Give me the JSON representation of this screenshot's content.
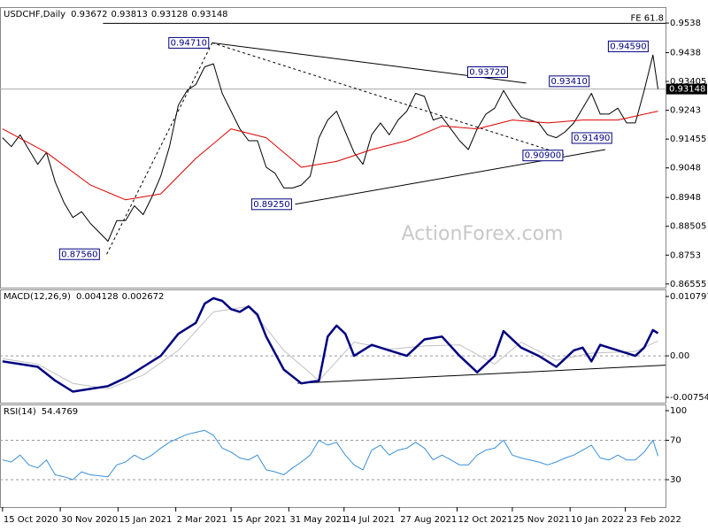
{
  "chart_data": [
    {
      "type": "line",
      "title": "USDCHF,Daily",
      "readout": [
        0.93672,
        0.93813,
        0.93128,
        0.93148
      ],
      "watermark": "ActionForex.com",
      "xlim": [
        -2,
        528
      ],
      "ylim": [
        0.8643,
        0.9592
      ],
      "yticks": [
        0.9538,
        0.9438,
        0.93405,
        0.9243,
        0.91455,
        0.9048,
        0.8948,
        0.88505,
        0.8753,
        0.86555
      ],
      "series": [
        {
          "color": "#000000",
          "width": 1,
          "x": [
            0,
            7,
            14,
            21,
            28,
            35,
            42,
            49,
            56,
            63,
            70,
            77,
            84,
            91,
            98,
            105,
            112,
            119,
            126,
            133,
            140,
            147,
            154,
            161,
            168,
            175,
            182,
            189,
            196,
            203,
            210,
            217,
            224,
            231,
            238,
            245,
            252,
            259,
            266,
            273,
            280,
            287,
            294,
            301,
            308,
            315,
            322,
            329,
            336,
            343,
            350,
            357,
            364,
            371,
            378,
            385,
            392,
            399,
            406,
            413,
            420,
            427,
            434,
            441,
            448,
            455,
            462,
            469,
            476,
            483,
            490,
            497,
            504,
            511,
            518,
            522
          ],
          "values": [
            0.915,
            0.912,
            0.916,
            0.911,
            0.906,
            0.91,
            0.9,
            0.893,
            0.888,
            0.89,
            0.886,
            0.883,
            0.88,
            0.887,
            0.887,
            0.892,
            0.889,
            0.895,
            0.902,
            0.912,
            0.926,
            0.931,
            0.933,
            0.939,
            0.94,
            0.93,
            0.924,
            0.918,
            0.914,
            0.914,
            0.905,
            0.903,
            0.898,
            0.898,
            0.899,
            0.902,
            0.915,
            0.921,
            0.924,
            0.917,
            0.91,
            0.906,
            0.916,
            0.92,
            0.916,
            0.921,
            0.924,
            0.93,
            0.929,
            0.921,
            0.922,
            0.918,
            0.914,
            0.911,
            0.918,
            0.923,
            0.925,
            0.931,
            0.926,
            0.922,
            0.921,
            0.92,
            0.916,
            0.915,
            0.917,
            0.92,
            0.925,
            0.93,
            0.923,
            0.923,
            0.925,
            0.92,
            0.92,
            0.931,
            0.943,
            0.93148
          ]
        },
        {
          "color": "#dd0000",
          "width": 1,
          "x": [
            0,
            35,
            70,
            98,
            126,
            154,
            182,
            210,
            238,
            266,
            294,
            322,
            350,
            378,
            406,
            434,
            462,
            490,
            522
          ],
          "values": [
            0.918,
            0.91,
            0.899,
            0.894,
            0.896,
            0.908,
            0.918,
            0.915,
            0.905,
            0.907,
            0.911,
            0.914,
            0.919,
            0.918,
            0.921,
            0.92,
            0.921,
            0.921,
            0.924
          ]
        }
      ],
      "lines": [
        {
          "style": "solid",
          "x": [
            167,
            417
          ],
          "y": [
            0.9471,
            0.9335
          ]
        },
        {
          "style": "solid",
          "x": [
            233,
            480
          ],
          "y": [
            0.8925,
            0.911
          ]
        },
        {
          "style": "dashed",
          "x": [
            83,
            167
          ],
          "y": [
            0.8756,
            0.9471
          ]
        },
        {
          "style": "dashed",
          "x": [
            167,
            449
          ],
          "y": [
            0.9471,
            0.909
          ]
        }
      ],
      "hline": {
        "y": 0.9537,
        "x0": 80,
        "label": "FE 61.8"
      },
      "last_price": 0.93148,
      "annotations": [
        {
          "text": "0.94710",
          "x": 167,
          "y": 0.9471
        },
        {
          "text": "0.87560",
          "x": 80,
          "y": 0.8756
        },
        {
          "text": "0.89250",
          "x": 233,
          "y": 0.8925
        },
        {
          "text": "0.93720",
          "x": 405,
          "y": 0.9372
        },
        {
          "text": "0.93410",
          "x": 470,
          "y": 0.9341
        },
        {
          "text": "0.90900",
          "x": 449,
          "y": 0.909
        },
        {
          "text": "0.91490",
          "x": 488,
          "y": 0.9149
        },
        {
          "text": "0.94590",
          "x": 517,
          "y": 0.9459
        }
      ]
    },
    {
      "type": "line",
      "title": "MACD(12,26,9)",
      "readout": [
        0.004128,
        0.002672
      ],
      "xlim": [
        -2,
        528
      ],
      "ylim": [
        -0.008515,
        0.012086
      ],
      "yticks": [
        0.010797,
        {
          "value": 0,
          "label": "0.00"
        },
        -0.007548
      ],
      "levels": [
        0
      ],
      "series": [
        {
          "color": "#c0c0c0",
          "width": 1,
          "x": [
            0,
            28,
            56,
            84,
            112,
            140,
            168,
            196,
            224,
            252,
            280,
            308,
            336,
            364,
            392,
            413,
            441,
            469,
            504,
            522
          ],
          "values": [
            -0.0005,
            -0.0015,
            -0.005,
            -0.006,
            -0.0035,
            0.001,
            0.008,
            0.009,
            0.001,
            -0.0045,
            0.0025,
            0.0012,
            0.0018,
            0.002,
            -0.0015,
            0.0025,
            -0.0008,
            0.0005,
            0.0008,
            0.0027
          ]
        },
        {
          "color": "#000080",
          "width": 2.5,
          "x": [
            0,
            14,
            28,
            42,
            56,
            70,
            84,
            98,
            112,
            126,
            140,
            154,
            161,
            168,
            175,
            182,
            189,
            196,
            203,
            210,
            224,
            238,
            252,
            259,
            266,
            273,
            280,
            294,
            308,
            322,
            336,
            350,
            364,
            378,
            392,
            399,
            413,
            427,
            441,
            455,
            462,
            469,
            476,
            490,
            504,
            511,
            518,
            522
          ],
          "values": [
            -0.001,
            -0.0015,
            -0.002,
            -0.0045,
            -0.0065,
            -0.006,
            -0.0055,
            -0.004,
            -0.002,
            0,
            0.004,
            0.006,
            0.0095,
            0.0105,
            0.01,
            0.0085,
            0.008,
            0.009,
            0.0075,
            0.0035,
            -0.0025,
            -0.005,
            -0.0045,
            0.0035,
            0.0055,
            0.004,
            0,
            0.002,
            0.001,
            0,
            0.003,
            0.0035,
            0,
            -0.003,
            0,
            0.0045,
            0.0015,
            0,
            -0.002,
            0.001,
            0.0015,
            -0.001,
            0.002,
            0.001,
            0,
            0.0015,
            0.0047,
            0.0041
          ]
        }
      ],
      "lines": [
        {
          "style": "solid",
          "x": [
            235,
            528
          ],
          "y": [
            -0.005,
            -0.0017
          ]
        }
      ]
    },
    {
      "type": "line",
      "title": "RSI(14)",
      "readout": [
        54.4769
      ],
      "xlim": [
        -2,
        528
      ],
      "ylim": [
        2.2,
        106.3
      ],
      "yticks": [
        100,
        70,
        30
      ],
      "levels": [
        70,
        30
      ],
      "xticks": [
        {
          "value": 0,
          "label": "15 Oct 2020"
        },
        {
          "value": 46,
          "label": "30 Nov 2020"
        },
        {
          "value": 92,
          "label": "15 Jan 2021"
        },
        {
          "value": 138,
          "label": "2 Mar 2021"
        },
        {
          "value": 182,
          "label": "15 Apr 2021"
        },
        {
          "value": 228,
          "label": "31 May 2021"
        },
        {
          "value": 272,
          "label": "14 Jul 2021"
        },
        {
          "value": 316,
          "label": "27 Aug 2021"
        },
        {
          "value": 362,
          "label": "12 Oct 2021"
        },
        {
          "value": 406,
          "label": "25 Nov 2021"
        },
        {
          "value": 452,
          "label": "10 Jan 2022"
        },
        {
          "value": 496,
          "label": "23 Feb 2022"
        }
      ],
      "series": [
        {
          "color": "#3a8fd8",
          "width": 1,
          "x": [
            0,
            7,
            14,
            21,
            28,
            35,
            42,
            49,
            56,
            63,
            70,
            77,
            84,
            91,
            98,
            105,
            112,
            119,
            126,
            133,
            140,
            147,
            154,
            161,
            168,
            175,
            182,
            189,
            196,
            203,
            210,
            217,
            224,
            231,
            238,
            245,
            252,
            259,
            266,
            273,
            280,
            287,
            294,
            301,
            308,
            315,
            322,
            329,
            336,
            343,
            350,
            357,
            364,
            371,
            378,
            385,
            392,
            399,
            406,
            413,
            420,
            427,
            434,
            441,
            448,
            455,
            462,
            469,
            476,
            483,
            490,
            497,
            504,
            511,
            518,
            522
          ],
          "values": [
            50,
            48,
            55,
            45,
            42,
            50,
            35,
            33,
            30,
            38,
            35,
            34,
            33,
            45,
            48,
            55,
            50,
            55,
            62,
            68,
            72,
            76,
            78,
            80,
            75,
            62,
            58,
            52,
            50,
            55,
            40,
            38,
            35,
            42,
            48,
            55,
            70,
            65,
            68,
            55,
            45,
            40,
            60,
            65,
            55,
            60,
            62,
            68,
            62,
            50,
            55,
            50,
            45,
            45,
            55,
            60,
            62,
            70,
            55,
            52,
            50,
            48,
            45,
            48,
            52,
            55,
            60,
            65,
            52,
            50,
            55,
            50,
            50,
            58,
            70,
            54
          ]
        }
      ]
    }
  ]
}
